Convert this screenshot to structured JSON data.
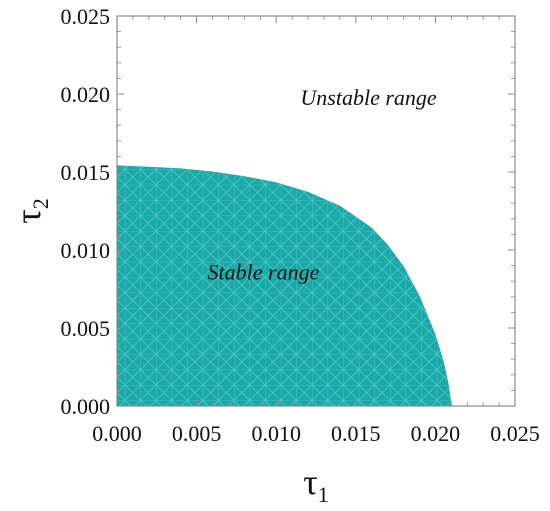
{
  "chart_data": {
    "type": "area",
    "xlabel": "τ",
    "xlabel_sub": "1",
    "ylabel": "τ",
    "ylabel_sub": "2",
    "xlim": [
      0,
      0.025
    ],
    "ylim": [
      0,
      0.025
    ],
    "x_ticks": [
      "0.000",
      "0.005",
      "0.010",
      "0.015",
      "0.020",
      "0.025"
    ],
    "y_ticks": [
      "0.000",
      "0.005",
      "0.010",
      "0.015",
      "0.020",
      "0.025"
    ],
    "grid": false,
    "fill_color": "#1aa9a8",
    "mesh_color": "#63d6d2",
    "stable_boundary": {
      "x": [
        0,
        0.002,
        0.004,
        0.006,
        0.008,
        0.01,
        0.012,
        0.014,
        0.016,
        0.017,
        0.018,
        0.019,
        0.02,
        0.0205,
        0.0208,
        0.021
      ],
      "y": [
        0.0154,
        0.0153,
        0.0152,
        0.015,
        0.0147,
        0.0143,
        0.0137,
        0.0128,
        0.0114,
        0.0103,
        0.0089,
        0.007,
        0.0045,
        0.0028,
        0.0014,
        0
      ]
    },
    "annotations": [
      {
        "text": "Unstable range",
        "x": 0.0158,
        "y": 0.0193
      },
      {
        "text": "Stable range",
        "x": 0.0092,
        "y": 0.0081
      }
    ]
  }
}
